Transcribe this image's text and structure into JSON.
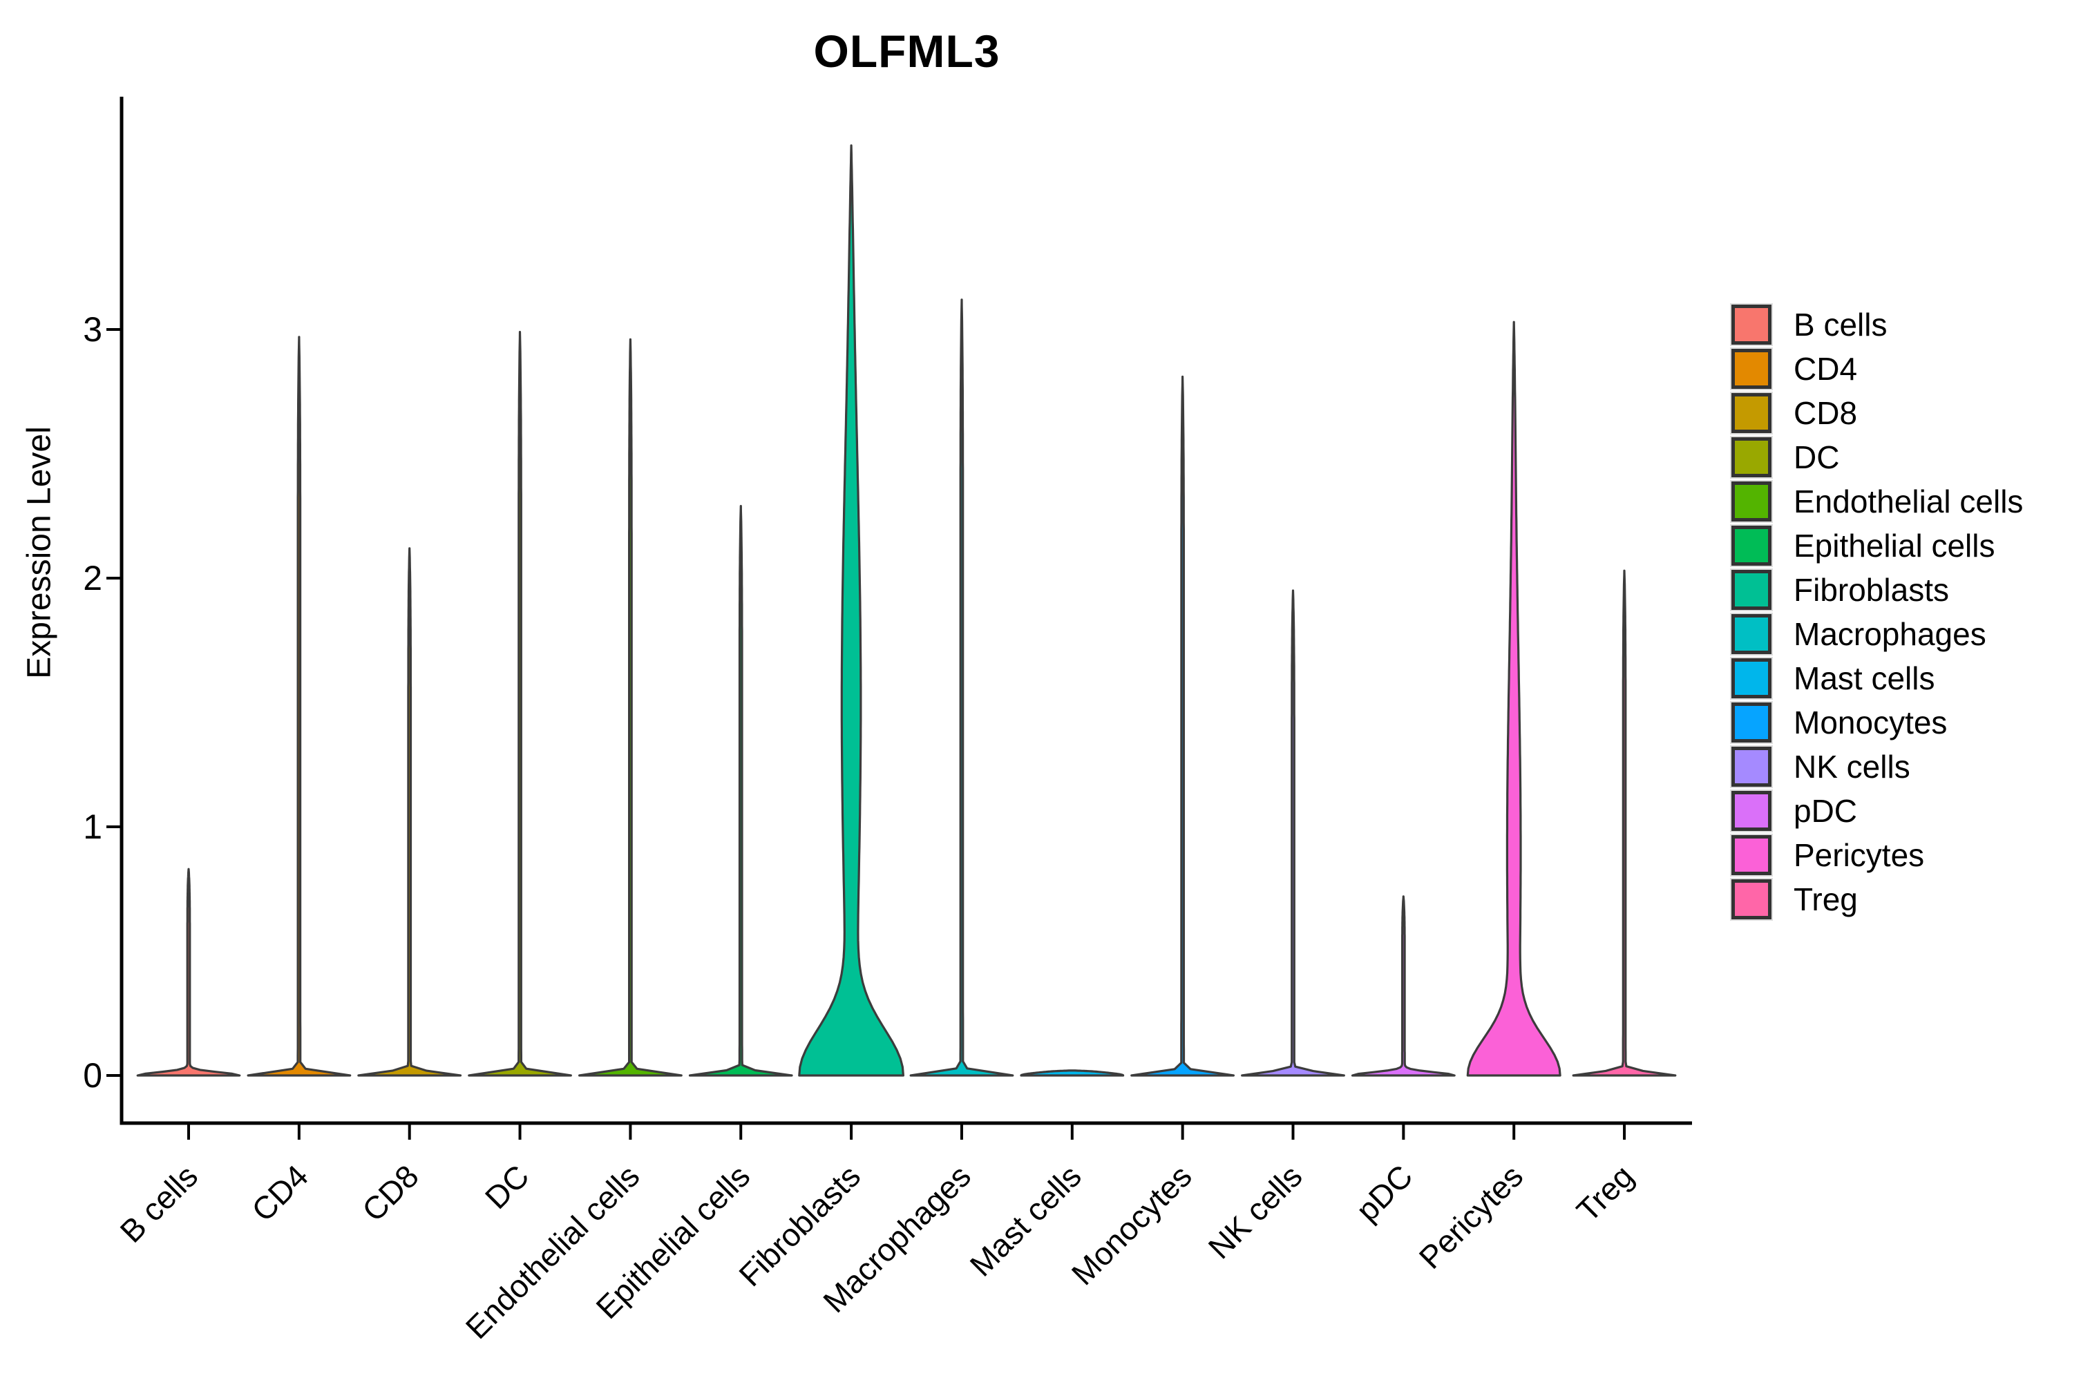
{
  "title": "OLFML3",
  "y_axis": {
    "label": "Expression Level"
  },
  "chart_data": {
    "type": "violin",
    "title": "OLFML3",
    "xlabel": "",
    "ylabel": "Expression Level",
    "ylim": [
      0,
      3.94
    ],
    "yticks": [
      0,
      1,
      2,
      3
    ],
    "grid": false,
    "legend_position": "right",
    "categories": [
      "B cells",
      "CD4",
      "CD8",
      "DC",
      "Endothelial cells",
      "Epithelial cells",
      "Fibroblasts",
      "Macrophages",
      "Mast cells",
      "Monocytes",
      "NK cells",
      "pDC",
      "Pericytes",
      "Treg"
    ],
    "series": [
      {
        "name": "B cells",
        "color": "#F8766D",
        "max_expression": 0.83,
        "shape": "spike",
        "profile": {
          "base_hw": 72,
          "base_scale": 0.018,
          "bulge_hw": 0,
          "bulge_center": 0,
          "bulge_scale": 1
        }
      },
      {
        "name": "CD4",
        "color": "#E38900",
        "max_expression": 2.97,
        "shape": "spike",
        "profile": {
          "base_hw": 72,
          "base_scale": 0.018,
          "bulge_hw": 0,
          "bulge_center": 0,
          "bulge_scale": 1
        }
      },
      {
        "name": "CD8",
        "color": "#C49A00",
        "max_expression": 2.12,
        "shape": "spike",
        "profile": {
          "base_hw": 72,
          "base_scale": 0.018,
          "bulge_hw": 0,
          "bulge_center": 0,
          "bulge_scale": 1
        }
      },
      {
        "name": "DC",
        "color": "#99A800",
        "max_expression": 2.99,
        "shape": "spike",
        "profile": {
          "base_hw": 72,
          "base_scale": 0.018,
          "bulge_hw": 0,
          "bulge_center": 0,
          "bulge_scale": 1
        }
      },
      {
        "name": "Endothelial cells",
        "color": "#53B400",
        "max_expression": 2.96,
        "shape": "spike",
        "profile": {
          "base_hw": 72,
          "base_scale": 0.018,
          "bulge_hw": 0,
          "bulge_center": 0,
          "bulge_scale": 1
        }
      },
      {
        "name": "Epithelial cells",
        "color": "#00BC56",
        "max_expression": 2.29,
        "shape": "spike",
        "profile": {
          "base_hw": 72,
          "base_scale": 0.018,
          "bulge_hw": 0,
          "bulge_center": 0,
          "bulge_scale": 1
        }
      },
      {
        "name": "Fibroblasts",
        "color": "#00C094",
        "max_expression": 3.74,
        "shape": "dense",
        "profile": {
          "base_hw": 70,
          "base_scale": 0.26,
          "bulge_hw": 12,
          "bulge_center": 1.5,
          "bulge_scale": 1.35
        }
      },
      {
        "name": "Macrophages",
        "color": "#00BFC4",
        "max_expression": 3.12,
        "shape": "spike",
        "profile": {
          "base_hw": 72,
          "base_scale": 0.018,
          "bulge_hw": 0,
          "bulge_center": 0,
          "bulge_scale": 1
        }
      },
      {
        "name": "Mast cells",
        "color": "#00B6EB",
        "max_expression": 0.02,
        "shape": "flat",
        "profile": {
          "base_hw": 72,
          "base_scale": 0.018,
          "bulge_hw": 0,
          "bulge_center": 0,
          "bulge_scale": 1
        }
      },
      {
        "name": "Monocytes",
        "color": "#06A4FF",
        "max_expression": 2.81,
        "shape": "spike",
        "profile": {
          "base_hw": 72,
          "base_scale": 0.018,
          "bulge_hw": 0,
          "bulge_center": 0,
          "bulge_scale": 1
        }
      },
      {
        "name": "NK cells",
        "color": "#A58AFF",
        "max_expression": 1.95,
        "shape": "spike",
        "profile": {
          "base_hw": 72,
          "base_scale": 0.018,
          "bulge_hw": 0,
          "bulge_center": 0,
          "bulge_scale": 1
        }
      },
      {
        "name": "pDC",
        "color": "#DA70F9",
        "max_expression": 0.72,
        "shape": "spike",
        "profile": {
          "base_hw": 72,
          "base_scale": 0.018,
          "bulge_hw": 0,
          "bulge_center": 0,
          "bulge_scale": 1
        }
      },
      {
        "name": "Pericytes",
        "color": "#FB61D7",
        "max_expression": 3.03,
        "shape": "dense",
        "profile": {
          "base_hw": 61,
          "base_scale": 0.21,
          "bulge_hw": 8,
          "bulge_center": 0.9,
          "bulge_scale": 1.1
        }
      },
      {
        "name": "Treg",
        "color": "#FF66A8",
        "max_expression": 2.03,
        "shape": "spike",
        "profile": {
          "base_hw": 72,
          "base_scale": 0.018,
          "bulge_hw": 0,
          "bulge_center": 0,
          "bulge_scale": 1
        }
      }
    ]
  }
}
